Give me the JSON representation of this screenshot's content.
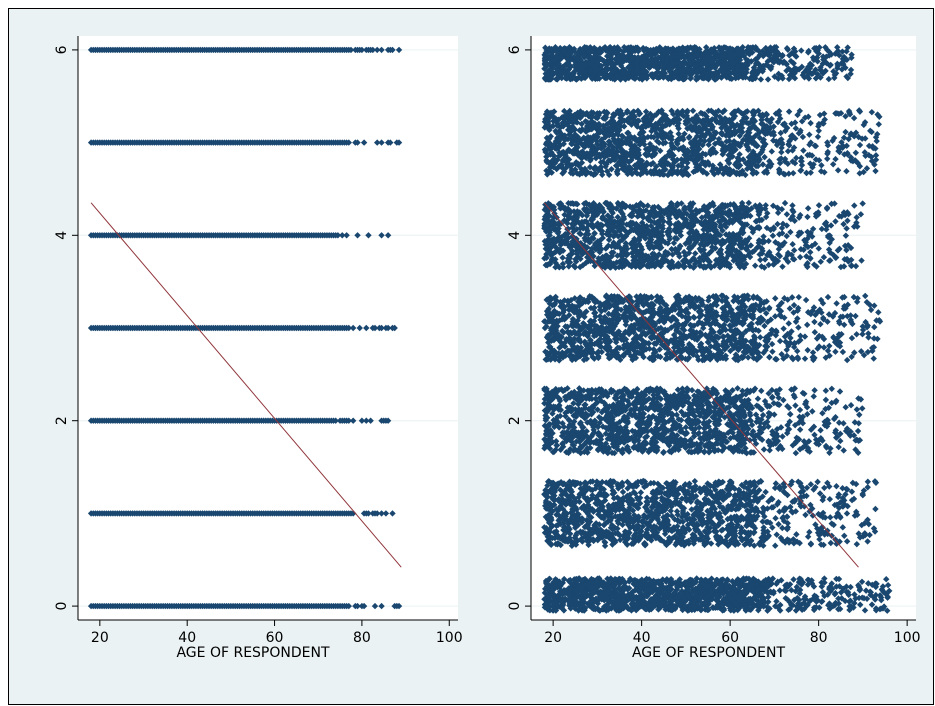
{
  "chart_data": [
    {
      "type": "scatter",
      "panel": "left",
      "xlabel": "AGE OF RESPONDENT",
      "ylabel": "",
      "xlim": [
        15,
        102
      ],
      "ylim": [
        -0.15,
        6.15
      ],
      "xticks": [
        20,
        40,
        60,
        80,
        100
      ],
      "yticks": [
        0,
        2,
        4,
        6
      ],
      "grid": true,
      "jitter": false,
      "series": [
        {
          "values_y": 6,
          "x_range": [
            18,
            89
          ]
        },
        {
          "values_y": 5,
          "x_range": [
            18,
            89
          ]
        },
        {
          "values_y": 4,
          "x_range": [
            18,
            86
          ]
        },
        {
          "values_y": 3,
          "x_range": [
            18,
            88
          ]
        },
        {
          "values_y": 2,
          "x_range": [
            18,
            86
          ]
        },
        {
          "values_y": 1,
          "x_range": [
            18,
            89
          ]
        },
        {
          "values_y": 0,
          "x_range": [
            18,
            89
          ]
        }
      ],
      "fit_line": {
        "x": [
          18,
          89
        ],
        "y": [
          4.35,
          0.42
        ]
      },
      "marker_color": "#1a476f",
      "fit_color": "#90353b"
    },
    {
      "type": "scatter",
      "panel": "right",
      "xlabel": "AGE OF RESPONDENT",
      "ylabel": "",
      "xlim": [
        15,
        102
      ],
      "ylim": [
        -0.15,
        6.15
      ],
      "xticks": [
        20,
        40,
        60,
        80,
        100
      ],
      "yticks": [
        0,
        2,
        4,
        6
      ],
      "grid": true,
      "jitter": true,
      "series": [
        {
          "values_y": 6,
          "x_range": [
            18,
            88
          ]
        },
        {
          "values_y": 5,
          "x_range": [
            18,
            94
          ]
        },
        {
          "values_y": 4,
          "x_range": [
            18,
            90
          ]
        },
        {
          "values_y": 3,
          "x_range": [
            18,
            94
          ]
        },
        {
          "values_y": 2,
          "x_range": [
            18,
            90
          ]
        },
        {
          "values_y": 1,
          "x_range": [
            18,
            93
          ]
        },
        {
          "values_y": 0,
          "x_range": [
            18,
            96
          ]
        }
      ],
      "fit_line": {
        "x": [
          18,
          89
        ],
        "y": [
          4.35,
          0.42
        ]
      },
      "marker_color": "#1a476f",
      "fit_color": "#90353b"
    }
  ]
}
